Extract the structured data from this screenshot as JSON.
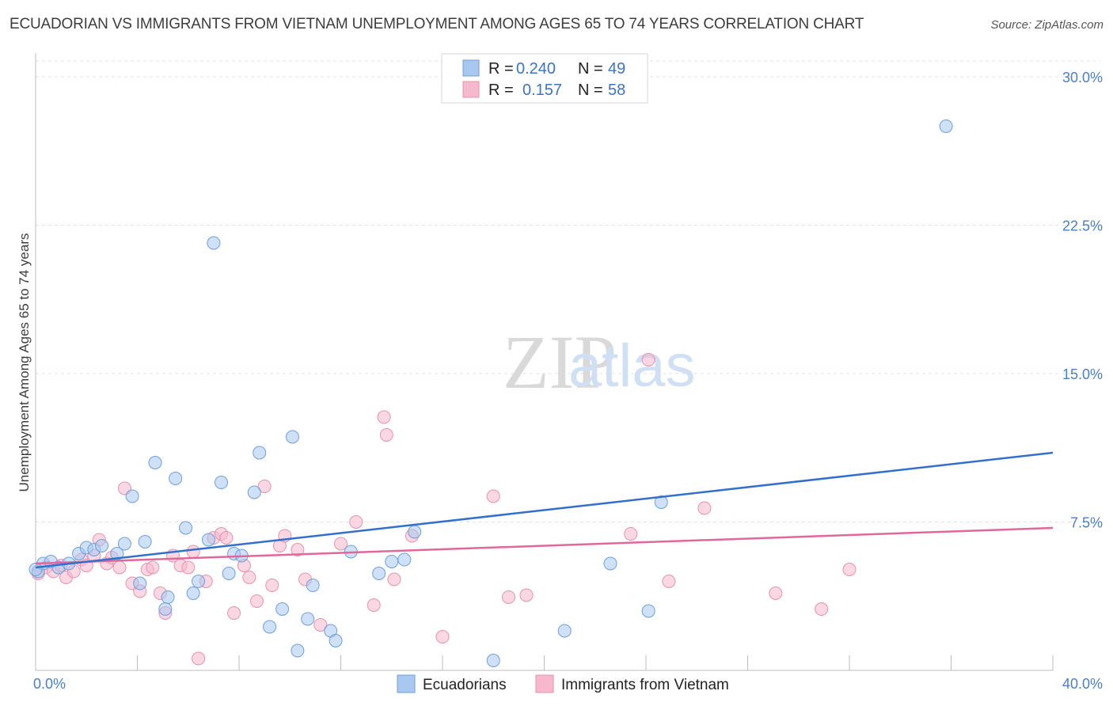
{
  "header": {
    "title": "ECUADORIAN VS IMMIGRANTS FROM VIETNAM UNEMPLOYMENT AMONG AGES 65 TO 74 YEARS CORRELATION CHART",
    "source": "Source: ZipAtlas.com"
  },
  "watermark": {
    "zip": "ZIP",
    "atlas": "atlas"
  },
  "legend": {
    "r_label": "R =",
    "n_label": "N =",
    "series1": {
      "r": "0.240",
      "n": "49"
    },
    "series2": {
      "r": "0.157",
      "n": "58"
    }
  },
  "chart_data": {
    "type": "scatter",
    "title": "ECUADORIAN VS IMMIGRANTS FROM VIETNAM UNEMPLOYMENT AMONG AGES 65 TO 74 YEARS CORRELATION CHART",
    "xlabel": "",
    "ylabel": "Unemployment Among Ages 65 to 74 years",
    "xlim": [
      0,
      40
    ],
    "ylim": [
      0,
      31
    ],
    "x_tick_labels": [
      "0.0%",
      "40.0%"
    ],
    "y_ticks": [
      7.5,
      15.0,
      22.5,
      30.0
    ],
    "y_tick_labels": [
      "7.5%",
      "15.0%",
      "22.5%",
      "30.0%"
    ],
    "legend_position": "top-center",
    "colors": {
      "series1_fill": "#a8c8ef",
      "series1_stroke": "#6f9fdc",
      "series1_line": "#3270cc",
      "series2_fill": "#f6b8cc",
      "series2_stroke": "#e792af",
      "series2_line": "#e0689a",
      "grid": "#e2e2e2",
      "axis": "#bdbdbd"
    },
    "series": [
      {
        "name": "Ecuadorians",
        "r": 0.24,
        "n": 49,
        "trend": [
          [
            0,
            5.2
          ],
          [
            40,
            11.0
          ]
        ],
        "points": [
          [
            0.1,
            5.0
          ],
          [
            0.3,
            5.4
          ],
          [
            0.6,
            5.5
          ],
          [
            0.9,
            5.2
          ],
          [
            1.3,
            5.4
          ],
          [
            1.7,
            5.9
          ],
          [
            2.0,
            6.2
          ],
          [
            2.3,
            6.1
          ],
          [
            2.6,
            6.3
          ],
          [
            3.2,
            5.9
          ],
          [
            3.5,
            6.4
          ],
          [
            3.8,
            8.8
          ],
          [
            4.1,
            4.4
          ],
          [
            4.3,
            6.5
          ],
          [
            4.7,
            10.5
          ],
          [
            5.1,
            3.1
          ],
          [
            5.2,
            3.7
          ],
          [
            5.5,
            9.7
          ],
          [
            5.9,
            7.2
          ],
          [
            6.2,
            3.9
          ],
          [
            6.4,
            4.5
          ],
          [
            6.8,
            6.6
          ],
          [
            7.0,
            21.6
          ],
          [
            7.3,
            9.5
          ],
          [
            7.6,
            4.9
          ],
          [
            7.8,
            5.9
          ],
          [
            8.1,
            5.8
          ],
          [
            8.6,
            9.0
          ],
          [
            8.8,
            11.0
          ],
          [
            9.2,
            2.2
          ],
          [
            9.7,
            3.1
          ],
          [
            10.1,
            11.8
          ],
          [
            10.3,
            1.0
          ],
          [
            10.7,
            2.6
          ],
          [
            10.9,
            4.3
          ],
          [
            11.6,
            2.0
          ],
          [
            11.8,
            1.5
          ],
          [
            12.4,
            6.0
          ],
          [
            13.5,
            4.9
          ],
          [
            14.0,
            5.5
          ],
          [
            14.5,
            5.6
          ],
          [
            14.9,
            7.0
          ],
          [
            18.0,
            0.5
          ],
          [
            20.8,
            2.0
          ],
          [
            22.6,
            5.4
          ],
          [
            24.1,
            3.0
          ],
          [
            24.6,
            8.5
          ],
          [
            35.8,
            27.5
          ],
          [
            0.0,
            5.1
          ]
        ]
      },
      {
        "name": "Immigrants from Vietnam",
        "r": 0.157,
        "n": 58,
        "trend": [
          [
            0,
            5.4
          ],
          [
            40,
            7.2
          ]
        ],
        "points": [
          [
            0.1,
            4.9
          ],
          [
            0.4,
            5.2
          ],
          [
            0.7,
            5.0
          ],
          [
            1.0,
            5.3
          ],
          [
            1.2,
            4.7
          ],
          [
            1.5,
            5.0
          ],
          [
            1.8,
            5.6
          ],
          [
            2.0,
            5.3
          ],
          [
            2.3,
            5.8
          ],
          [
            2.5,
            6.6
          ],
          [
            2.8,
            5.4
          ],
          [
            3.0,
            5.7
          ],
          [
            3.3,
            5.2
          ],
          [
            3.5,
            9.2
          ],
          [
            3.8,
            4.4
          ],
          [
            4.1,
            4.0
          ],
          [
            4.4,
            5.1
          ],
          [
            4.6,
            5.2
          ],
          [
            4.9,
            3.9
          ],
          [
            5.1,
            2.9
          ],
          [
            5.4,
            5.8
          ],
          [
            5.7,
            5.3
          ],
          [
            6.0,
            5.2
          ],
          [
            6.2,
            6.0
          ],
          [
            6.4,
            0.6
          ],
          [
            6.7,
            4.5
          ],
          [
            7.0,
            6.7
          ],
          [
            7.3,
            6.9
          ],
          [
            7.5,
            6.7
          ],
          [
            7.8,
            2.9
          ],
          [
            8.2,
            5.3
          ],
          [
            8.4,
            4.7
          ],
          [
            8.7,
            3.5
          ],
          [
            9.0,
            9.3
          ],
          [
            9.3,
            4.3
          ],
          [
            9.6,
            6.3
          ],
          [
            9.8,
            6.8
          ],
          [
            10.3,
            6.1
          ],
          [
            10.6,
            4.6
          ],
          [
            11.2,
            2.3
          ],
          [
            12.0,
            6.4
          ],
          [
            12.6,
            7.5
          ],
          [
            13.3,
            3.3
          ],
          [
            13.7,
            12.8
          ],
          [
            13.8,
            11.9
          ],
          [
            14.1,
            4.6
          ],
          [
            14.8,
            6.8
          ],
          [
            16.0,
            1.7
          ],
          [
            18.0,
            8.8
          ],
          [
            18.6,
            3.7
          ],
          [
            19.3,
            3.8
          ],
          [
            23.4,
            6.9
          ],
          [
            24.1,
            15.7
          ],
          [
            24.9,
            4.5
          ],
          [
            26.3,
            8.2
          ],
          [
            29.1,
            3.9
          ],
          [
            30.9,
            3.1
          ],
          [
            32.0,
            5.1
          ]
        ]
      }
    ]
  },
  "bottom_legend": {
    "item1": "Ecuadorians",
    "item2": "Immigrants from Vietnam"
  }
}
